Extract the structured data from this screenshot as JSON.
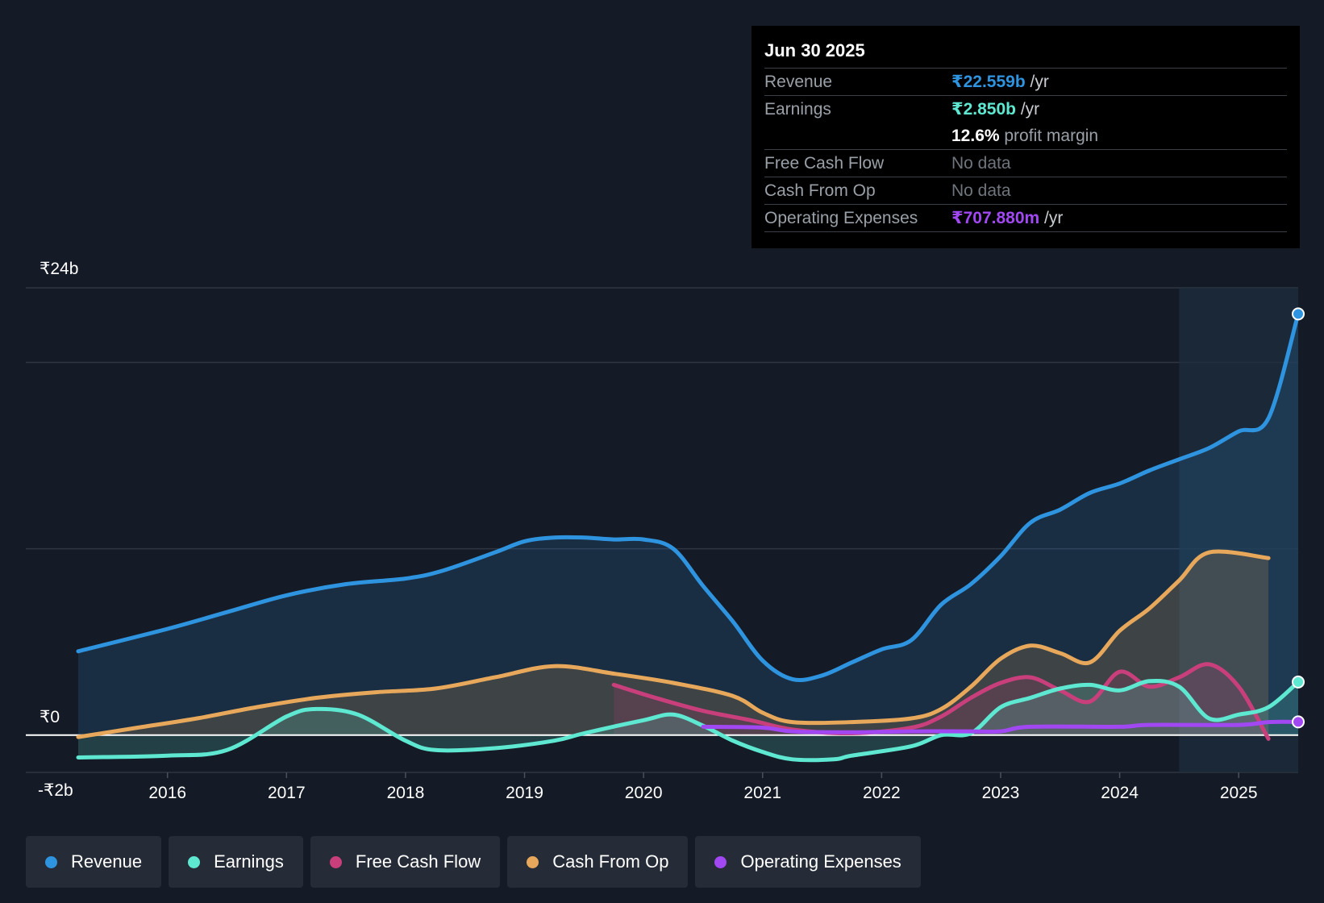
{
  "tooltip": {
    "date": "Jun 30 2025",
    "rows": [
      {
        "label": "Revenue",
        "value": "₹22.559b",
        "unit": " /yr",
        "color": "#2f94e0"
      },
      {
        "label": "Earnings",
        "value": "₹2.850b",
        "unit": " /yr",
        "color": "#5ee8d1"
      },
      {
        "label": "",
        "value": "12.6%",
        "unit": " profit margin",
        "color": "#ffffff"
      },
      {
        "label": "Free Cash Flow",
        "value": "No data"
      },
      {
        "label": "Cash From Op",
        "value": "No data"
      },
      {
        "label": "Operating Expenses",
        "value": "₹707.880m",
        "unit": " /yr",
        "color": "#a148f3"
      }
    ]
  },
  "legend": [
    {
      "label": "Revenue",
      "color": "#2f94e0"
    },
    {
      "label": "Earnings",
      "color": "#5ee8d1"
    },
    {
      "label": "Free Cash Flow",
      "color": "#c93f7c"
    },
    {
      "label": "Cash From Op",
      "color": "#e8a85b"
    },
    {
      "label": "Operating Expenses",
      "color": "#a148f3"
    }
  ],
  "chart_data": {
    "type": "line",
    "y_unit": "₹b",
    "ylim": [
      -2,
      24
    ],
    "ytick_labels": [
      {
        "value": 24,
        "label": "₹24b"
      },
      {
        "value": 0,
        "label": "₹0"
      },
      {
        "value": -2,
        "label": "-₹2b"
      }
    ],
    "x_ticks": [
      2016,
      2017,
      2018,
      2019,
      2020,
      2021,
      2022,
      2023,
      2024,
      2025
    ],
    "xlim": [
      2015.25,
      2025.5
    ],
    "highlight_start": 2024.5,
    "series": [
      {
        "name": "Revenue",
        "color": "#2f94e0",
        "fill": true,
        "x": [
          2015.25,
          2016,
          2016.5,
          2017,
          2017.5,
          2018,
          2018.3,
          2018.75,
          2019,
          2019.25,
          2019.5,
          2019.75,
          2020,
          2020.25,
          2020.5,
          2020.75,
          2021,
          2021.25,
          2021.5,
          2021.75,
          2022,
          2022.25,
          2022.5,
          2022.75,
          2023,
          2023.25,
          2023.5,
          2023.75,
          2024,
          2024.25,
          2024.5,
          2024.75,
          2025,
          2025.25,
          2025.5
        ],
        "y": [
          4.5,
          5.7,
          6.6,
          7.5,
          8.1,
          8.4,
          8.8,
          9.8,
          10.4,
          10.6,
          10.6,
          10.5,
          10.5,
          10.0,
          8.0,
          6.1,
          4.0,
          3.0,
          3.2,
          3.9,
          4.6,
          5.1,
          7.0,
          8.1,
          9.6,
          11.4,
          12.1,
          13.0,
          13.5,
          14.2,
          14.8,
          15.4,
          16.3,
          17.0,
          22.6
        ]
      },
      {
        "name": "Cash From Op",
        "color": "#e8a85b",
        "fill": true,
        "x": [
          2015.25,
          2015.75,
          2016.25,
          2016.75,
          2017.25,
          2017.75,
          2018.25,
          2018.75,
          2019.25,
          2019.75,
          2020.25,
          2020.75,
          2021,
          2021.25,
          2021.75,
          2022.25,
          2022.5,
          2022.75,
          2023,
          2023.25,
          2023.5,
          2023.75,
          2024,
          2024.25,
          2024.5,
          2024.75,
          2025.25
        ],
        "y": [
          -0.1,
          0.4,
          0.9,
          1.5,
          2.0,
          2.3,
          2.5,
          3.1,
          3.7,
          3.3,
          2.8,
          2.1,
          1.2,
          0.7,
          0.7,
          0.9,
          1.4,
          2.6,
          4.1,
          4.8,
          4.4,
          3.9,
          5.6,
          6.8,
          8.3,
          9.8,
          9.5
        ]
      },
      {
        "name": "Free Cash Flow",
        "color": "#c93f7c",
        "fill": true,
        "x": [
          2019.75,
          2020.1,
          2020.5,
          2020.9,
          2021.25,
          2021.75,
          2022.25,
          2022.5,
          2022.75,
          2023,
          2023.25,
          2023.5,
          2023.75,
          2024,
          2024.25,
          2024.5,
          2024.75,
          2025,
          2025.25
        ],
        "y": [
          2.7,
          2.0,
          1.3,
          0.8,
          0.3,
          0.1,
          0.4,
          1.0,
          2.0,
          2.8,
          3.1,
          2.4,
          1.8,
          3.4,
          2.6,
          3.1,
          3.8,
          2.6,
          -0.2
        ]
      },
      {
        "name": "Earnings",
        "color": "#5ee8d1",
        "fill": true,
        "x": [
          2015.25,
          2016,
          2016.5,
          2017,
          2017.25,
          2017.6,
          2018,
          2018.25,
          2018.75,
          2019.25,
          2019.5,
          2020,
          2020.25,
          2020.5,
          2020.75,
          2021,
          2021.25,
          2021.6,
          2021.75,
          2022.25,
          2022.5,
          2022.75,
          2023,
          2023.25,
          2023.5,
          2023.75,
          2024,
          2024.25,
          2024.5,
          2024.75,
          2025,
          2025.25,
          2025.5
        ],
        "y": [
          -1.2,
          -1.1,
          -0.8,
          1.0,
          1.4,
          1.1,
          -0.3,
          -0.8,
          -0.7,
          -0.3,
          0.1,
          0.8,
          1.1,
          0.5,
          -0.3,
          -0.9,
          -1.3,
          -1.3,
          -1.1,
          -0.6,
          0.0,
          0.1,
          1.5,
          2.0,
          2.5,
          2.7,
          2.4,
          2.9,
          2.6,
          0.9,
          1.1,
          1.5,
          2.85
        ]
      },
      {
        "name": "Operating Expenses",
        "color": "#a148f3",
        "fill": false,
        "x": [
          2020.5,
          2021,
          2021.25,
          2021.75,
          2022.25,
          2022.75,
          2023,
          2023.25,
          2024,
          2024.25,
          2025,
          2025.25,
          2025.5
        ],
        "y": [
          0.45,
          0.4,
          0.2,
          0.15,
          0.2,
          0.2,
          0.2,
          0.45,
          0.45,
          0.55,
          0.55,
          0.7,
          0.71
        ]
      }
    ]
  }
}
